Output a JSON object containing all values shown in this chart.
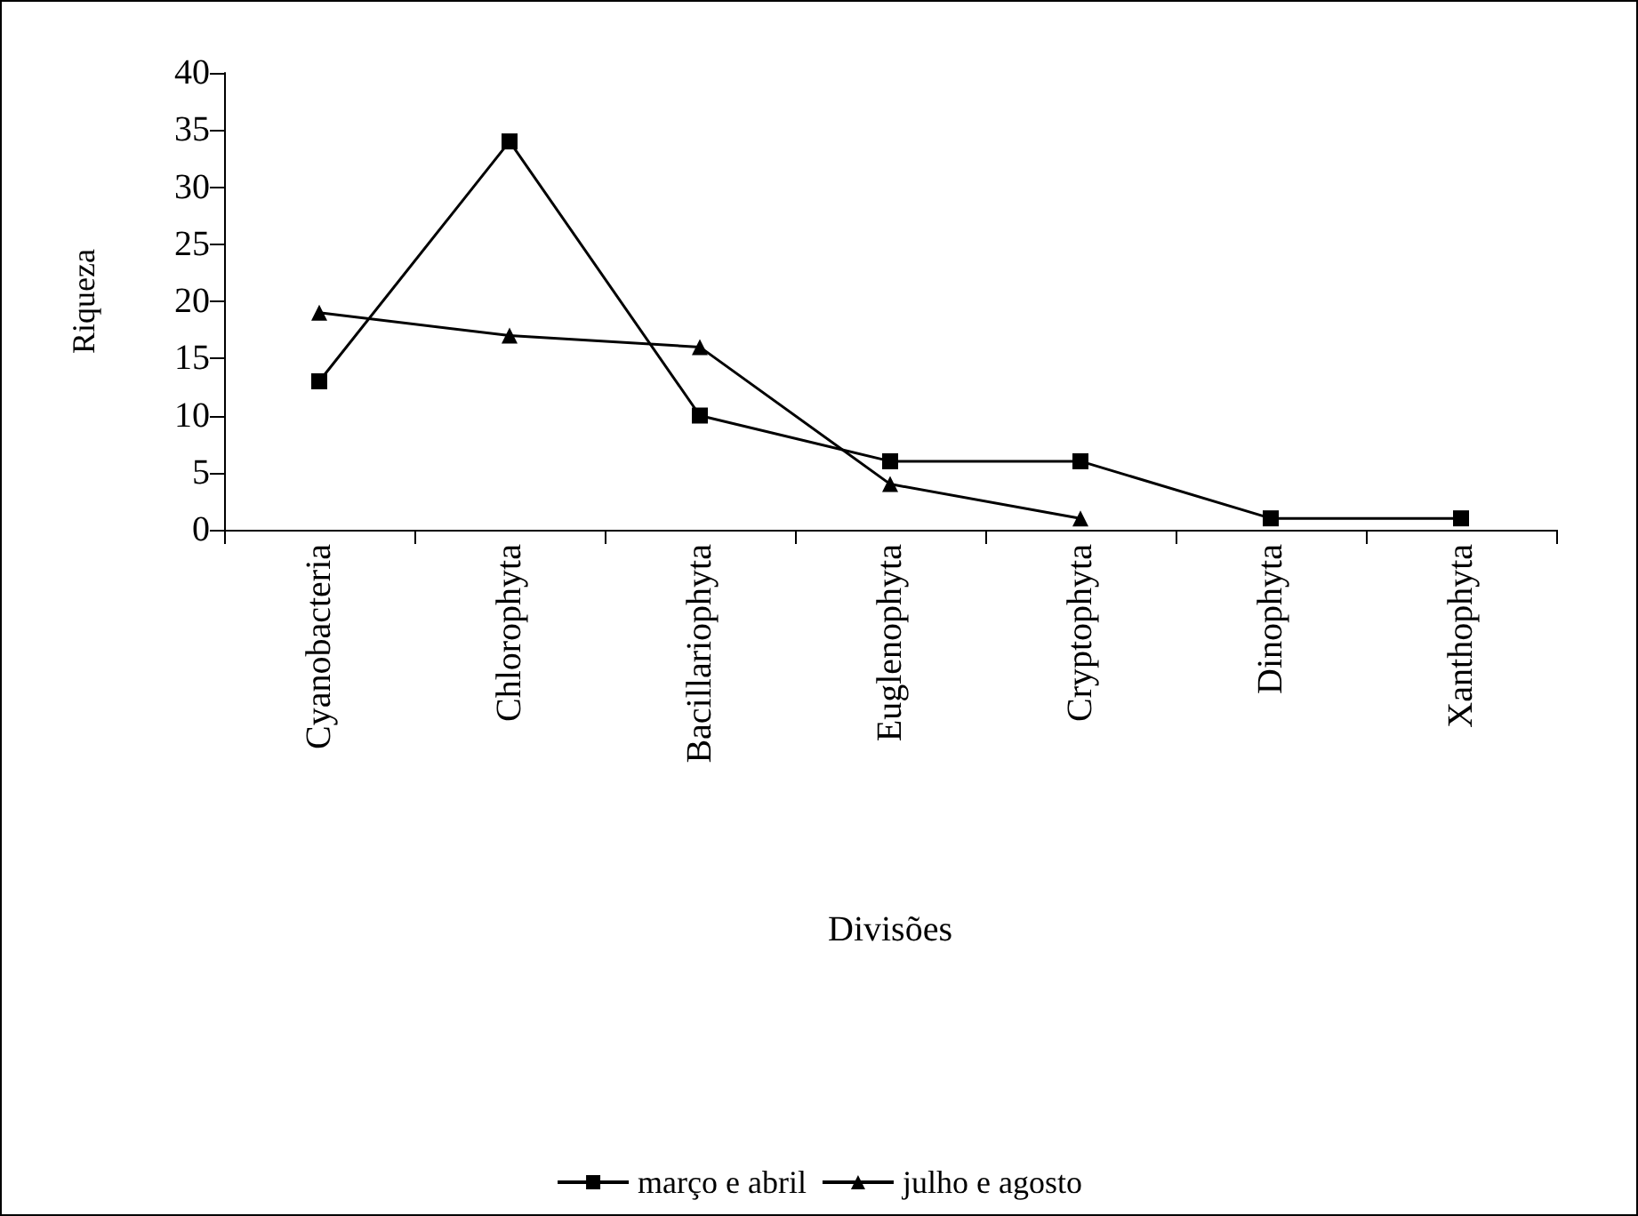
{
  "chart_data": {
    "type": "line",
    "xlabel": "Divisões",
    "ylabel": "Riqueza",
    "categories": [
      "Cyanobacteria",
      "Chlorophyta",
      "Bacillariophyta",
      "Euglenophyta",
      "Cryptophyta",
      "Dinophyta",
      "Xanthophyta"
    ],
    "series": [
      {
        "name": "março e abril",
        "color": "#000000",
        "marker": "square",
        "values": [
          13,
          34,
          10,
          6,
          6,
          1,
          1
        ]
      },
      {
        "name": "julho e agosto",
        "color": "#000000",
        "marker": "triangle",
        "values": [
          19,
          17,
          16,
          4,
          1,
          null,
          null
        ]
      }
    ],
    "ylim": [
      0,
      40
    ],
    "yticks": [
      0,
      5,
      10,
      15,
      20,
      25,
      30,
      35,
      40
    ],
    "grid": false,
    "legend": "bottom",
    "line_style": "solid"
  }
}
